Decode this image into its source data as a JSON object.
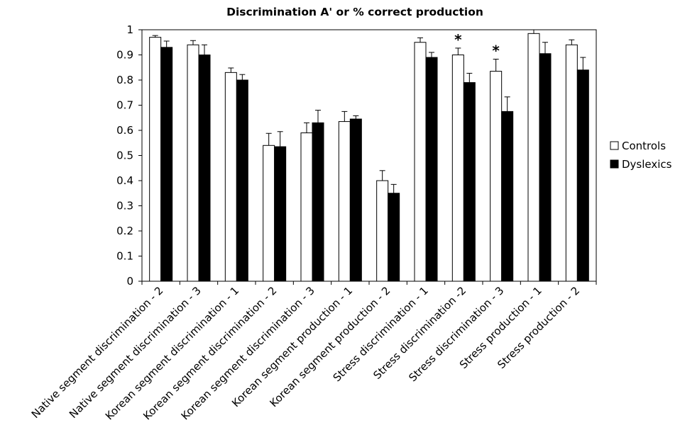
{
  "chart_data": {
    "type": "bar",
    "title": "Discrimination A' or % correct production",
    "xlabel": "",
    "ylabel": "",
    "ylim": [
      0,
      1
    ],
    "yticks": [
      "0",
      "0.1",
      "0.2",
      "0.3",
      "0.4",
      "0.5",
      "0.6",
      "0.7",
      "0.8",
      "0.9",
      "1"
    ],
    "grid": false,
    "legend_position": "right",
    "categories": [
      "Native segment discrimination - 2",
      "Native segment discrimination - 3",
      "Korean segment discrimination - 1",
      "Korean segment discrimination - 2",
      "Korean segment discrimination - 3",
      "Korean segment production - 1",
      "Korean segment production - 2",
      "Stress discrimination - 1",
      "Stress discrimination -2",
      "Stress discrimination - 3",
      "Stress production - 1",
      "Stress production - 2"
    ],
    "series": [
      {
        "name": "Controls",
        "color": "#ffffff",
        "values": [
          0.97,
          0.94,
          0.83,
          0.54,
          0.59,
          0.635,
          0.4,
          0.95,
          0.9,
          0.835,
          0.985,
          0.94
        ],
        "error": [
          0.007,
          0.017,
          0.018,
          0.048,
          0.04,
          0.04,
          0.04,
          0.018,
          0.027,
          0.048,
          0.015,
          0.02
        ]
      },
      {
        "name": "Dyslexics",
        "color": "#000000",
        "values": [
          0.93,
          0.9,
          0.8,
          0.535,
          0.63,
          0.645,
          0.35,
          0.89,
          0.79,
          0.675,
          0.905,
          0.84
        ],
        "error": [
          0.025,
          0.04,
          0.022,
          0.06,
          0.05,
          0.013,
          0.035,
          0.02,
          0.037,
          0.058,
          0.045,
          0.05
        ]
      }
    ],
    "annotations": [
      {
        "category_index": 8,
        "text": "*"
      },
      {
        "category_index": 9,
        "text": "*"
      }
    ]
  }
}
